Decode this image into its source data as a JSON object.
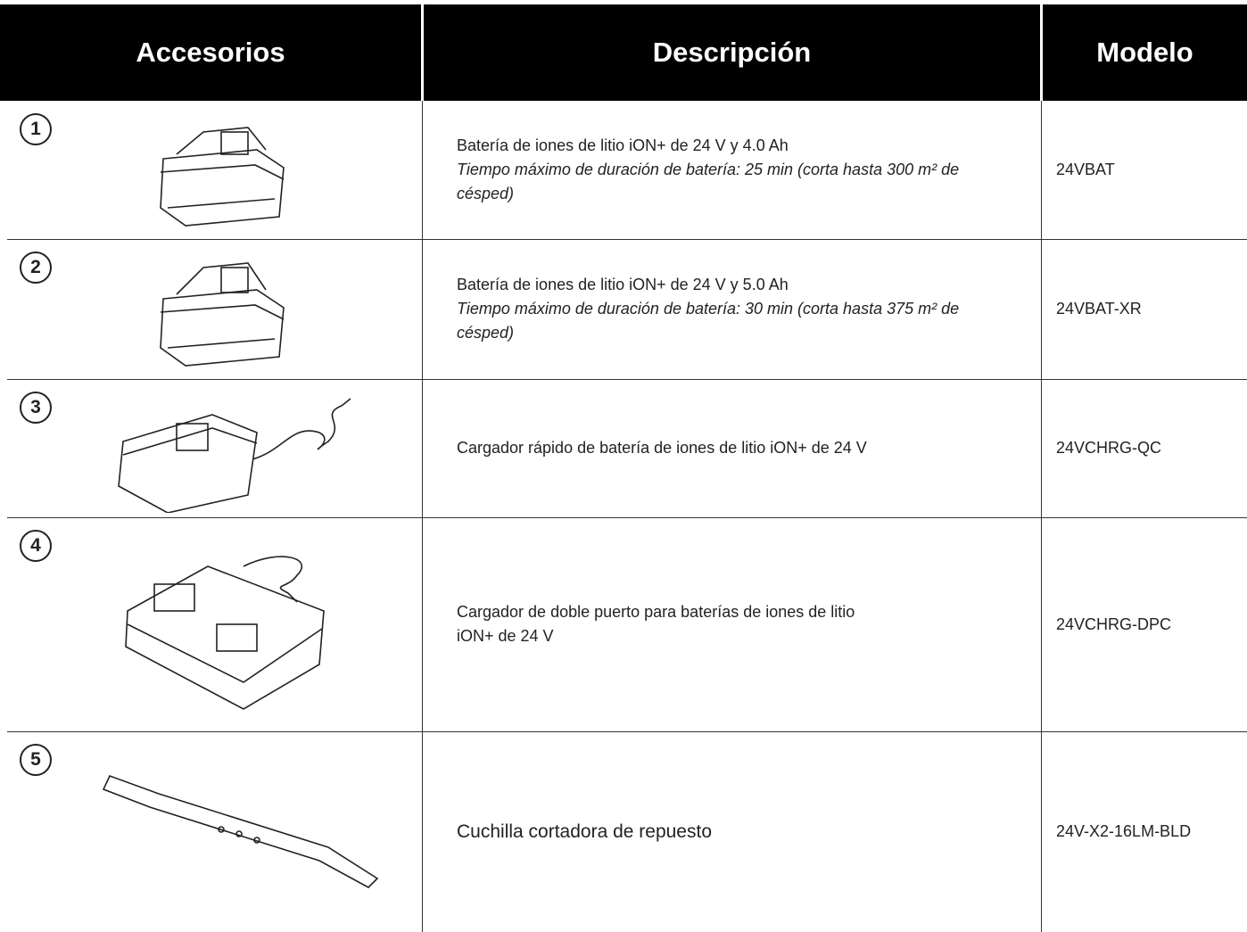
{
  "table": {
    "headers": [
      "Accesorios",
      "Descripción",
      "Modelo"
    ],
    "rows": [
      {
        "number": "1",
        "description": "Batería de iones de litio iON+ de 24 V y 4.0 Ah",
        "note": "Tiempo máximo de duración de batería: 25 min (corta hasta 300 m² de césped)",
        "model": "24VBAT"
      },
      {
        "number": "2",
        "description": "Batería de iones de litio iON+ de 24 V y 5.0 Ah",
        "note": "Tiempo máximo de duración de batería: 30 min (corta hasta 375 m² de césped)",
        "model": "24VBAT-XR"
      },
      {
        "number": "3",
        "description": "Cargador rápido de batería de iones de litio iON+ de 24 V",
        "model": "24VCHRG-QC"
      },
      {
        "number": "4",
        "description": "Cargador de doble puerto para baterías de iones de litio iON+ de 24 V",
        "model": "24VCHRG-DPC"
      },
      {
        "number": "5",
        "description": "Cuchilla cortadora de repuesto",
        "model": "24V-X2-16LM-BLD"
      }
    ]
  }
}
